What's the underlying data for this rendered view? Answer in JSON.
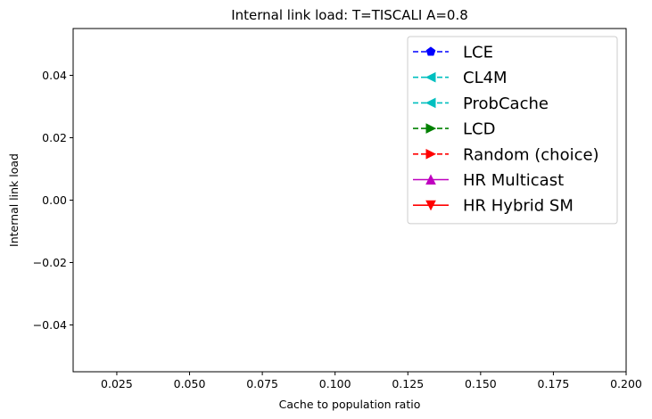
{
  "chart_data": {
    "type": "line",
    "title": "Internal link load: T=TISCALI A=0.8",
    "xlabel": "Cache to population ratio",
    "ylabel": "Internal link load",
    "xlim": [
      0.01,
      0.2
    ],
    "ylim": [
      -0.055,
      0.055
    ],
    "xticks": [
      0.025,
      0.05,
      0.075,
      0.1,
      0.125,
      0.15,
      0.175,
      0.2
    ],
    "xtick_labels": [
      "0.025",
      "0.050",
      "0.075",
      "0.100",
      "0.125",
      "0.150",
      "0.175",
      "0.200"
    ],
    "yticks": [
      -0.04,
      -0.02,
      0.0,
      0.02,
      0.04
    ],
    "ytick_labels": [
      "−0.04",
      "−0.02",
      "0.00",
      "0.02",
      "0.04"
    ],
    "grid": false,
    "legend_position": "top-right",
    "series": [
      {
        "name": "LCE",
        "color": "#0000ff",
        "linestyle": "dashed",
        "marker": "pentagon",
        "x": [],
        "y": []
      },
      {
        "name": "CL4M",
        "color": "#00bfbf",
        "linestyle": "dashed",
        "marker": "triangle-left",
        "x": [],
        "y": []
      },
      {
        "name": "ProbCache",
        "color": "#00bfbf",
        "linestyle": "dashed",
        "marker": "triangle-left",
        "x": [],
        "y": []
      },
      {
        "name": "LCD",
        "color": "#008000",
        "linestyle": "dashed",
        "marker": "triangle-right",
        "x": [],
        "y": []
      },
      {
        "name": "Random (choice)",
        "color": "#ff0000",
        "linestyle": "dashed",
        "marker": "triangle-right",
        "x": [],
        "y": []
      },
      {
        "name": "HR Multicast",
        "color": "#bf00bf",
        "linestyle": "solid",
        "marker": "triangle-up",
        "x": [],
        "y": []
      },
      {
        "name": "HR Hybrid SM",
        "color": "#ff0000",
        "linestyle": "solid",
        "marker": "triangle-down",
        "x": [],
        "y": []
      }
    ]
  }
}
